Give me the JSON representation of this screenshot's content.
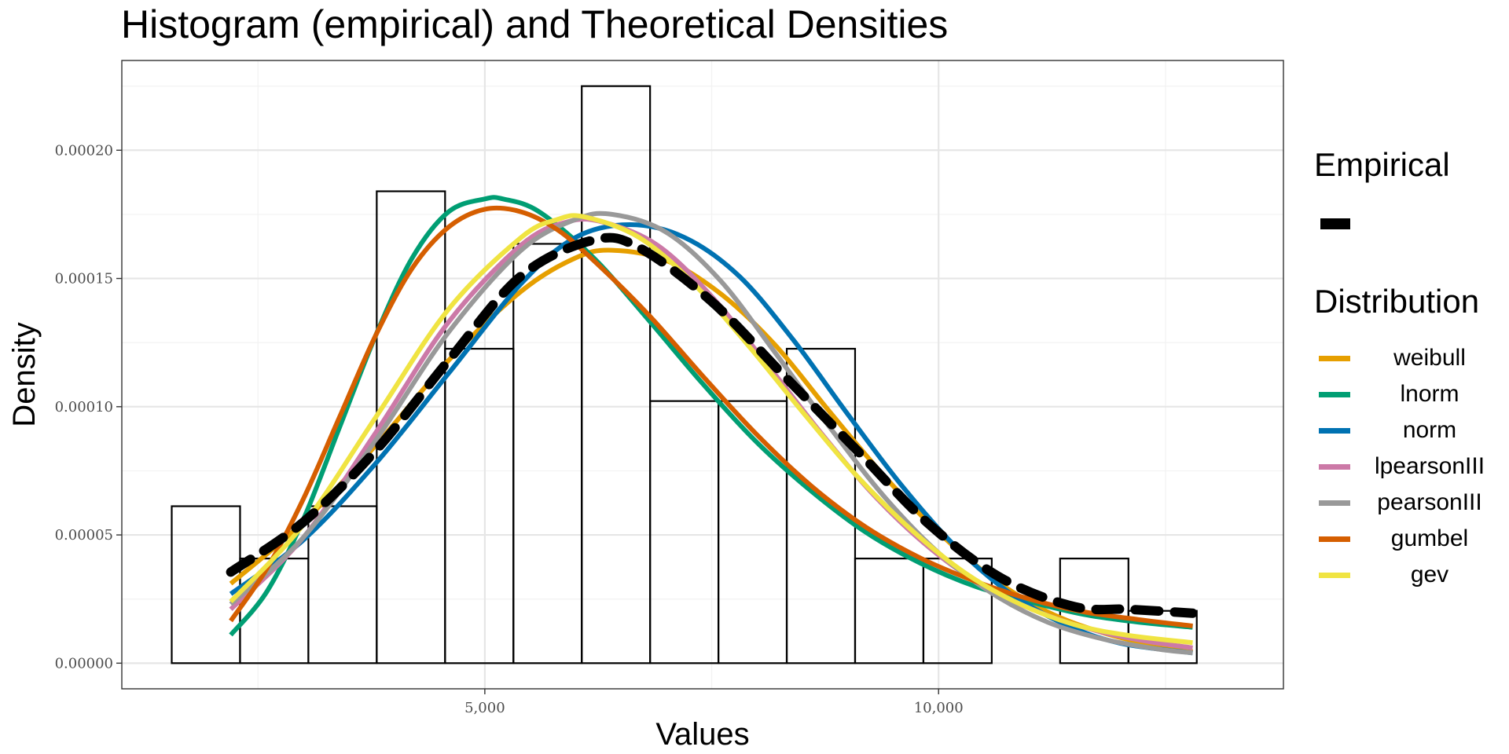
{
  "chart_data": {
    "type": "histogram",
    "title": "Histogram (empirical) and Theoretical Densities",
    "xlabel": "Values",
    "ylabel": "Density",
    "xlim": [
      1000,
      13800
    ],
    "ylim": [
      -1e-05,
      0.000235
    ],
    "x_ticks": [
      {
        "value": 5000,
        "label": "5,000"
      },
      {
        "value": 10000,
        "label": "10,000"
      }
    ],
    "x_minor_ticks": [
      2500,
      7500,
      12500
    ],
    "y_ticks": [
      {
        "value": 0,
        "label": "0.00000"
      },
      {
        "value": 5e-05,
        "label": "0.00005"
      },
      {
        "value": 0.0001,
        "label": "0.00010"
      },
      {
        "value": 0.00015,
        "label": "0.00015"
      },
      {
        "value": 0.0002,
        "label": "0.00020"
      }
    ],
    "y_minor_ticks": [
      2.5e-05,
      7.5e-05,
      0.000125,
      0.000175,
      0.000225
    ],
    "grid": true,
    "histogram": {
      "bin_start": 1550,
      "bin_width": 753,
      "densities": [
        6.12e-05,
        4.08e-05,
        6.12e-05,
        0.000184,
        0.0001226,
        0.0001635,
        0.000225,
        0.0001022,
        0.0001022,
        0.0001226,
        4.08e-05,
        4.08e-05,
        0.0,
        4.08e-05,
        2.04e-05
      ]
    },
    "empirical": {
      "name": "Empirical",
      "color": "#000000",
      "x": [
        2200,
        3000,
        3800,
        4600,
        5400,
        6200,
        6700,
        7500,
        8300,
        9100,
        9900,
        10700,
        11500,
        12100,
        12800
      ],
      "y": [
        3.55e-05,
        5.5e-05,
        8.3e-05,
        0.000118,
        0.000151,
        0.000165,
        0.000162,
        0.000141,
        0.000112,
        8.3e-05,
        5.4e-05,
        3.3e-05,
        2.2e-05,
        2.1e-05,
        1.95e-05
      ]
    },
    "legend_title": "Distribution",
    "series": [
      {
        "name": "weibull",
        "color": "#E69F00",
        "x": [
          2200,
          3000,
          3800,
          4600,
          5400,
          6000,
          6400,
          7000,
          7600,
          8200,
          8800,
          9400,
          10000,
          10600,
          11200,
          11800,
          12400,
          12800
        ],
        "y": [
          3.1e-05,
          5.5e-05,
          8.5e-05,
          0.000118,
          0.000145,
          0.000158,
          0.000161,
          0.000157,
          0.000144,
          0.000124,
          9.8e-05,
          7.3e-05,
          5.1e-05,
          3.3e-05,
          2e-05,
          1.2e-05,
          6.8e-06,
          4.5e-06
        ]
      },
      {
        "name": "lnorm",
        "color": "#009E73",
        "x": [
          2200,
          2600,
          3000,
          3400,
          3800,
          4200,
          4600,
          5000,
          5200,
          5600,
          6200,
          6800,
          7400,
          8000,
          8600,
          9200,
          9800,
          10400,
          11000,
          11600,
          12200,
          12800
        ],
        "y": [
          1.1e-05,
          2.8e-05,
          5.6e-05,
          9.2e-05,
          0.000128,
          0.000158,
          0.000176,
          0.000181,
          0.000181,
          0.000176,
          0.000158,
          0.000134,
          0.000109,
          8.6e-05,
          6.7e-05,
          5.1e-05,
          3.9e-05,
          3e-05,
          2.4e-05,
          1.9e-05,
          1.6e-05,
          1.4e-05
        ]
      },
      {
        "name": "norm",
        "color": "#0072B2",
        "x": [
          2200,
          3000,
          3800,
          4600,
          5400,
          6000,
          6600,
          7200,
          7800,
          8400,
          9000,
          9600,
          10200,
          10800,
          11400,
          12000,
          12800
        ],
        "y": [
          2.7e-05,
          4.8e-05,
          7.8e-05,
          0.000113,
          0.000148,
          0.000166,
          0.000171,
          0.000166,
          0.000151,
          0.000126,
          9.7e-05,
          6.9e-05,
          4.5e-05,
          2.7e-05,
          1.5e-05,
          7.8e-06,
          4e-06
        ]
      },
      {
        "name": "lpearsonIII",
        "color": "#CC79A7",
        "x": [
          2200,
          3000,
          3800,
          4600,
          5400,
          5900,
          6300,
          6900,
          7500,
          8100,
          8700,
          9300,
          9900,
          10500,
          11100,
          11700,
          12300,
          12800
        ],
        "y": [
          2.1e-05,
          4.9e-05,
          9e-05,
          0.000133,
          0.000163,
          0.000172,
          0.000172,
          0.000163,
          0.000143,
          0.000117,
          9e-05,
          6.5e-05,
          4.5e-05,
          3e-05,
          2e-05,
          1.3e-05,
          8.5e-06,
          6e-06
        ]
      },
      {
        "name": "pearsonIII",
        "color": "#999999",
        "x": [
          2200,
          3000,
          3800,
          4600,
          5400,
          6000,
          6400,
          7000,
          7600,
          8200,
          8800,
          9400,
          10000,
          10600,
          11200,
          11800,
          12400,
          12800
        ],
        "y": [
          2.3e-05,
          4.9e-05,
          8.7e-05,
          0.000129,
          0.000161,
          0.000173,
          0.000175,
          0.000168,
          0.000149,
          0.000121,
          9.2e-05,
          6.5e-05,
          4.3e-05,
          2.7e-05,
          1.6e-05,
          9.5e-06,
          5.6e-06,
          4e-06
        ]
      },
      {
        "name": "gumbel",
        "color": "#D55E00",
        "x": [
          2200,
          2600,
          3000,
          3400,
          3800,
          4200,
          4600,
          5000,
          5400,
          5800,
          6200,
          6800,
          7400,
          8000,
          8600,
          9200,
          9800,
          10400,
          11000,
          11600,
          12200,
          12800
        ],
        "y": [
          1.65e-05,
          3.7e-05,
          6.4e-05,
          9.6e-05,
          0.000128,
          0.000154,
          0.00017,
          0.000177,
          0.000176,
          0.000169,
          0.000157,
          0.000136,
          0.000112,
          8.9e-05,
          6.9e-05,
          5.3e-05,
          4.1e-05,
          3.2e-05,
          2.5e-05,
          2e-05,
          1.7e-05,
          1.45e-05
        ]
      },
      {
        "name": "gev",
        "color": "#F0E442",
        "x": [
          2200,
          3000,
          3800,
          4600,
          5400,
          5800,
          6100,
          6700,
          7300,
          7900,
          8500,
          9100,
          9700,
          10300,
          10900,
          11500,
          12100,
          12800
        ],
        "y": [
          2.4e-05,
          5.4e-05,
          9.6e-05,
          0.000138,
          0.000166,
          0.000173,
          0.000174,
          0.000166,
          0.000148,
          0.000124,
          9.8e-05,
          7.3e-05,
          5.2e-05,
          3.5e-05,
          2.3e-05,
          1.5e-05,
          1.08e-05,
          8e-06
        ]
      }
    ],
    "legend_position": "right"
  },
  "legend": {
    "empirical_title": "Empirical"
  }
}
